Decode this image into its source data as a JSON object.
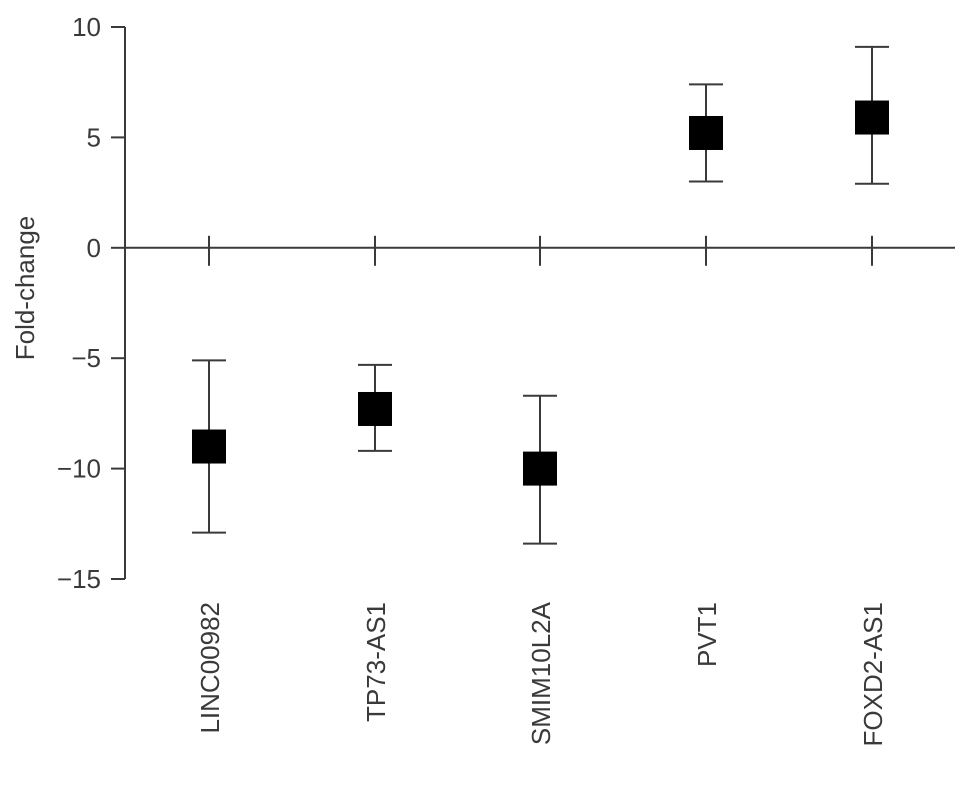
{
  "chart_data": {
    "type": "scatter",
    "title": "",
    "xlabel": "",
    "ylabel": "Fold-change",
    "ylim": [
      -15,
      10
    ],
    "yticks": [
      10,
      5,
      0,
      -5,
      -10,
      -15
    ],
    "ytick_labels": [
      "10",
      "5",
      "0",
      "−5",
      "−10",
      "−15"
    ],
    "grid": false,
    "categories": [
      "LINC00982",
      "TP73-AS1",
      "SMIM10L2A",
      "PVT1",
      "FOXD2-AS1"
    ],
    "values": [
      -9.0,
      -7.3,
      -10.0,
      5.2,
      5.9
    ],
    "error_low": [
      -12.9,
      -9.2,
      -13.4,
      3.0,
      2.9
    ],
    "error_high": [
      -5.1,
      -5.3,
      -6.7,
      7.4,
      9.1
    ],
    "marker": "square",
    "marker_color": "#000000"
  }
}
